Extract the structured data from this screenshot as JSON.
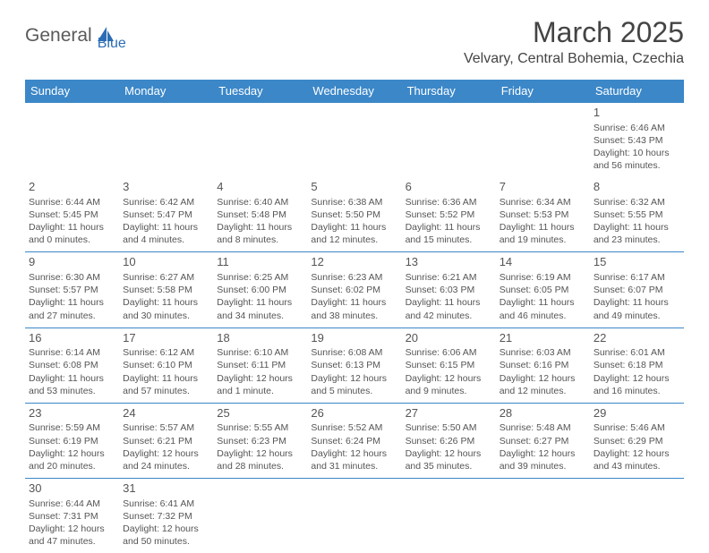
{
  "colors": {
    "header_bg": "#3b87c8",
    "header_text": "#ffffff",
    "border": "#3b87c8",
    "body_text": "#555555",
    "title_text": "#444444",
    "logo_gray": "#5a5a5a",
    "logo_blue": "#2a6db5",
    "page_bg": "#ffffff"
  },
  "typography": {
    "title_fontsize": 32,
    "location_fontsize": 16,
    "weekday_fontsize": 13,
    "daynum_fontsize": 13,
    "cell_fontsize": 10.5
  },
  "logo": {
    "part1": "General",
    "part2": "Blue"
  },
  "title": "March 2025",
  "location": "Velvary, Central Bohemia, Czechia",
  "weekdays": [
    "Sunday",
    "Monday",
    "Tuesday",
    "Wednesday",
    "Thursday",
    "Friday",
    "Saturday"
  ],
  "weeks": [
    [
      null,
      null,
      null,
      null,
      null,
      null,
      {
        "day": "1",
        "sunrise": "Sunrise: 6:46 AM",
        "sunset": "Sunset: 5:43 PM",
        "daylight": "Daylight: 10 hours and 56 minutes."
      }
    ],
    [
      {
        "day": "2",
        "sunrise": "Sunrise: 6:44 AM",
        "sunset": "Sunset: 5:45 PM",
        "daylight": "Daylight: 11 hours and 0 minutes."
      },
      {
        "day": "3",
        "sunrise": "Sunrise: 6:42 AM",
        "sunset": "Sunset: 5:47 PM",
        "daylight": "Daylight: 11 hours and 4 minutes."
      },
      {
        "day": "4",
        "sunrise": "Sunrise: 6:40 AM",
        "sunset": "Sunset: 5:48 PM",
        "daylight": "Daylight: 11 hours and 8 minutes."
      },
      {
        "day": "5",
        "sunrise": "Sunrise: 6:38 AM",
        "sunset": "Sunset: 5:50 PM",
        "daylight": "Daylight: 11 hours and 12 minutes."
      },
      {
        "day": "6",
        "sunrise": "Sunrise: 6:36 AM",
        "sunset": "Sunset: 5:52 PM",
        "daylight": "Daylight: 11 hours and 15 minutes."
      },
      {
        "day": "7",
        "sunrise": "Sunrise: 6:34 AM",
        "sunset": "Sunset: 5:53 PM",
        "daylight": "Daylight: 11 hours and 19 minutes."
      },
      {
        "day": "8",
        "sunrise": "Sunrise: 6:32 AM",
        "sunset": "Sunset: 5:55 PM",
        "daylight": "Daylight: 11 hours and 23 minutes."
      }
    ],
    [
      {
        "day": "9",
        "sunrise": "Sunrise: 6:30 AM",
        "sunset": "Sunset: 5:57 PM",
        "daylight": "Daylight: 11 hours and 27 minutes."
      },
      {
        "day": "10",
        "sunrise": "Sunrise: 6:27 AM",
        "sunset": "Sunset: 5:58 PM",
        "daylight": "Daylight: 11 hours and 30 minutes."
      },
      {
        "day": "11",
        "sunrise": "Sunrise: 6:25 AM",
        "sunset": "Sunset: 6:00 PM",
        "daylight": "Daylight: 11 hours and 34 minutes."
      },
      {
        "day": "12",
        "sunrise": "Sunrise: 6:23 AM",
        "sunset": "Sunset: 6:02 PM",
        "daylight": "Daylight: 11 hours and 38 minutes."
      },
      {
        "day": "13",
        "sunrise": "Sunrise: 6:21 AM",
        "sunset": "Sunset: 6:03 PM",
        "daylight": "Daylight: 11 hours and 42 minutes."
      },
      {
        "day": "14",
        "sunrise": "Sunrise: 6:19 AM",
        "sunset": "Sunset: 6:05 PM",
        "daylight": "Daylight: 11 hours and 46 minutes."
      },
      {
        "day": "15",
        "sunrise": "Sunrise: 6:17 AM",
        "sunset": "Sunset: 6:07 PM",
        "daylight": "Daylight: 11 hours and 49 minutes."
      }
    ],
    [
      {
        "day": "16",
        "sunrise": "Sunrise: 6:14 AM",
        "sunset": "Sunset: 6:08 PM",
        "daylight": "Daylight: 11 hours and 53 minutes."
      },
      {
        "day": "17",
        "sunrise": "Sunrise: 6:12 AM",
        "sunset": "Sunset: 6:10 PM",
        "daylight": "Daylight: 11 hours and 57 minutes."
      },
      {
        "day": "18",
        "sunrise": "Sunrise: 6:10 AM",
        "sunset": "Sunset: 6:11 PM",
        "daylight": "Daylight: 12 hours and 1 minute."
      },
      {
        "day": "19",
        "sunrise": "Sunrise: 6:08 AM",
        "sunset": "Sunset: 6:13 PM",
        "daylight": "Daylight: 12 hours and 5 minutes."
      },
      {
        "day": "20",
        "sunrise": "Sunrise: 6:06 AM",
        "sunset": "Sunset: 6:15 PM",
        "daylight": "Daylight: 12 hours and 9 minutes."
      },
      {
        "day": "21",
        "sunrise": "Sunrise: 6:03 AM",
        "sunset": "Sunset: 6:16 PM",
        "daylight": "Daylight: 12 hours and 12 minutes."
      },
      {
        "day": "22",
        "sunrise": "Sunrise: 6:01 AM",
        "sunset": "Sunset: 6:18 PM",
        "daylight": "Daylight: 12 hours and 16 minutes."
      }
    ],
    [
      {
        "day": "23",
        "sunrise": "Sunrise: 5:59 AM",
        "sunset": "Sunset: 6:19 PM",
        "daylight": "Daylight: 12 hours and 20 minutes."
      },
      {
        "day": "24",
        "sunrise": "Sunrise: 5:57 AM",
        "sunset": "Sunset: 6:21 PM",
        "daylight": "Daylight: 12 hours and 24 minutes."
      },
      {
        "day": "25",
        "sunrise": "Sunrise: 5:55 AM",
        "sunset": "Sunset: 6:23 PM",
        "daylight": "Daylight: 12 hours and 28 minutes."
      },
      {
        "day": "26",
        "sunrise": "Sunrise: 5:52 AM",
        "sunset": "Sunset: 6:24 PM",
        "daylight": "Daylight: 12 hours and 31 minutes."
      },
      {
        "day": "27",
        "sunrise": "Sunrise: 5:50 AM",
        "sunset": "Sunset: 6:26 PM",
        "daylight": "Daylight: 12 hours and 35 minutes."
      },
      {
        "day": "28",
        "sunrise": "Sunrise: 5:48 AM",
        "sunset": "Sunset: 6:27 PM",
        "daylight": "Daylight: 12 hours and 39 minutes."
      },
      {
        "day": "29",
        "sunrise": "Sunrise: 5:46 AM",
        "sunset": "Sunset: 6:29 PM",
        "daylight": "Daylight: 12 hours and 43 minutes."
      }
    ],
    [
      {
        "day": "30",
        "sunrise": "Sunrise: 6:44 AM",
        "sunset": "Sunset: 7:31 PM",
        "daylight": "Daylight: 12 hours and 47 minutes."
      },
      {
        "day": "31",
        "sunrise": "Sunrise: 6:41 AM",
        "sunset": "Sunset: 7:32 PM",
        "daylight": "Daylight: 12 hours and 50 minutes."
      },
      null,
      null,
      null,
      null,
      null
    ]
  ]
}
